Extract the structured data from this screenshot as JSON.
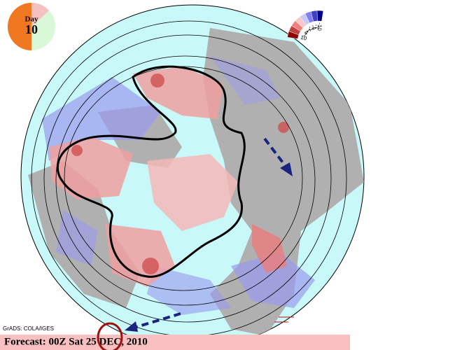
{
  "day_dial": {
    "label": "Day",
    "number": "10"
  },
  "legend": {
    "labels": [
      "10",
      "7",
      "4",
      "1",
      "-1",
      "-4",
      "-7",
      "-10"
    ]
  },
  "credit": "GrADS: COLA/IGES",
  "footer": "Forecast: 00Z Sat 25 DEC, 2010"
}
